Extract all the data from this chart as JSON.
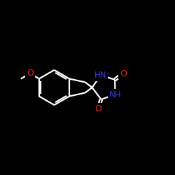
{
  "bg": "#000000",
  "wc": "#ffffff",
  "nc": "#3333ff",
  "oc": "#ff2200",
  "lw": 1.6,
  "figsize": [
    2.5,
    2.5
  ],
  "dpi": 100,
  "xlim": [
    0,
    10
  ],
  "ylim": [
    0,
    10
  ]
}
